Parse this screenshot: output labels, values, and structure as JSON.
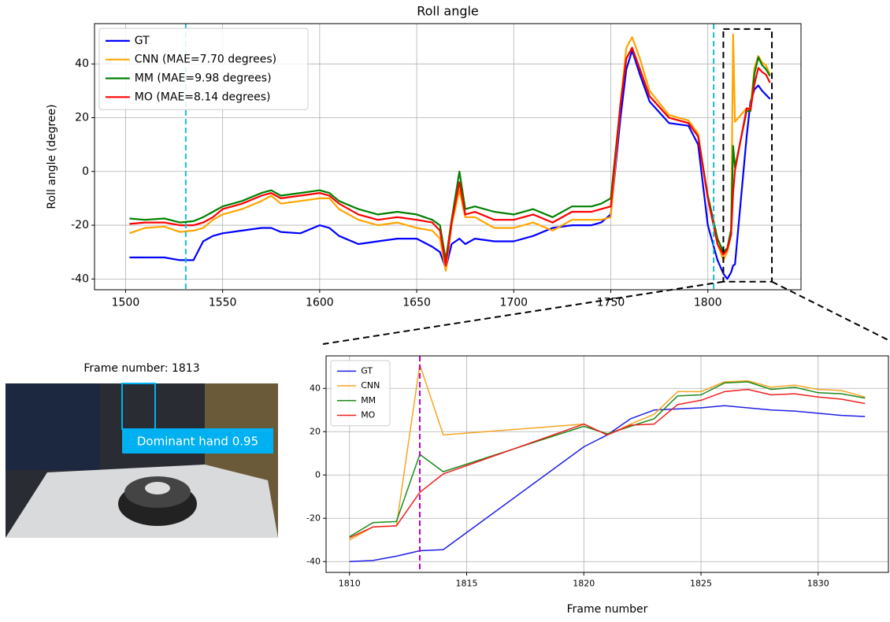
{
  "chart_data": [
    {
      "type": "line",
      "title": "Roll angle",
      "ylabel": "Roll angle (degree)",
      "x": [
        1502,
        1510,
        1520,
        1528,
        1535,
        1540,
        1545,
        1550,
        1560,
        1570,
        1575,
        1580,
        1590,
        1600,
        1605,
        1610,
        1620,
        1630,
        1640,
        1650,
        1658,
        1662,
        1665,
        1668,
        1672,
        1675,
        1680,
        1690,
        1700,
        1710,
        1720,
        1730,
        1740,
        1745,
        1750,
        1755,
        1758,
        1761,
        1765,
        1770,
        1780,
        1790,
        1795,
        1800,
        1805,
        1808,
        1810,
        1812,
        1813,
        1814,
        1820,
        1822,
        1824,
        1826,
        1828,
        1830,
        1832
      ],
      "series": [
        {
          "name": "GT",
          "color": "#0000ff",
          "values": [
            -32,
            -32,
            -32,
            -33,
            -33,
            -26,
            -24,
            -23,
            -22,
            -21,
            -21,
            -22.5,
            -23,
            -20,
            -21,
            -24,
            -27,
            -26,
            -25,
            -25,
            -28,
            -30,
            -36,
            -27,
            -25,
            -27,
            -25,
            -26,
            -26,
            -24,
            -21,
            -20,
            -20,
            -19,
            -16,
            20,
            38,
            45,
            36,
            26,
            18,
            17,
            10,
            -20,
            -33,
            -38,
            -40,
            -37.5,
            -35,
            -34.5,
            13,
            26,
            30.5,
            32,
            30,
            28.5,
            27
          ]
        },
        {
          "name": "CNN (MAE=7.70 degrees)",
          "color": "#ffa500",
          "values": [
            -23,
            -21,
            -20.5,
            -22.5,
            -22,
            -21,
            -18,
            -16,
            -14,
            -11,
            -9,
            -12,
            -11,
            -10,
            -10,
            -14,
            -18,
            -20,
            -19,
            -21,
            -22,
            -25,
            -37,
            -20,
            -7,
            -17,
            -17,
            -21,
            -21,
            -19,
            -22,
            -18,
            -18,
            -18,
            -17,
            25,
            46,
            50,
            42,
            30,
            21,
            19,
            14,
            -10,
            -27,
            -33,
            -30,
            -23.5,
            51,
            18.5,
            23.5,
            23.5,
            38.5,
            43,
            40.5,
            39.5,
            36
          ]
        },
        {
          "name": "MM (MAE=9.98 degrees)",
          "color": "#008000",
          "values": [
            -17.5,
            -18,
            -17.5,
            -19,
            -18.5,
            -17,
            -15,
            -13,
            -11,
            -8,
            -7,
            -9,
            -8,
            -7,
            -8,
            -11,
            -14,
            -16,
            -15,
            -16,
            -18,
            -20,
            -33,
            -18,
            0,
            -14,
            -13,
            -15,
            -16,
            -14,
            -17,
            -13,
            -13,
            -12,
            -10,
            25,
            42,
            46,
            38,
            28,
            20,
            18,
            13,
            -9,
            -25,
            -30,
            -28.5,
            -21.5,
            9.5,
            1.5,
            22.5,
            22.5,
            36.5,
            42.5,
            39.5,
            38,
            35.5
          ]
        },
        {
          "name": "MO (MAE=8.14 degrees)",
          "color": "#ff0000",
          "values": [
            -19.5,
            -19,
            -19,
            -20,
            -20,
            -19,
            -17,
            -14,
            -12,
            -9,
            -8,
            -10,
            -9,
            -8,
            -9,
            -12,
            -16,
            -18,
            -17,
            -18,
            -19,
            -22,
            -35,
            -19,
            -4,
            -16,
            -15,
            -18,
            -18,
            -16,
            -19,
            -15,
            -15,
            -14,
            -13,
            25,
            42,
            46,
            38,
            28,
            20,
            18,
            13,
            -10,
            -27,
            -31,
            -29,
            -23.5,
            -8,
            0.5,
            23.5,
            23,
            32.5,
            38.5,
            37,
            36,
            33
          ]
        }
      ],
      "xlim": [
        1484,
        1848
      ],
      "xticks": [
        1500,
        1550,
        1600,
        1650,
        1700,
        1750,
        1800
      ],
      "ylim": [
        -44,
        55
      ],
      "yticks": [
        -40,
        -20,
        0,
        20,
        40
      ],
      "grid": true,
      "legend": "upper left",
      "vlines": [
        1531,
        1803
      ],
      "vline_color": "#17becf",
      "zoom_box": {
        "xlim": [
          1808,
          1833
        ],
        "ylim": [
          -41,
          53
        ]
      }
    },
    {
      "type": "line",
      "xlabel": "Frame number",
      "x": [
        1810,
        1811,
        1812,
        1813,
        1814,
        1820,
        1821,
        1822,
        1823,
        1824,
        1825,
        1826,
        1827,
        1828,
        1829,
        1830,
        1831,
        1832
      ],
      "series": [
        {
          "name": "GT",
          "color": "#1f1fe6",
          "values": [
            -40,
            -39.5,
            -37.5,
            -35,
            -34.5,
            13,
            18.5,
            26,
            30,
            30.5,
            31,
            32,
            31,
            30,
            29.5,
            28.5,
            27.5,
            27
          ]
        },
        {
          "name": "CNN",
          "color": "#f5a623",
          "values": [
            -30,
            -24,
            -23.5,
            51,
            18.5,
            23.5,
            18.5,
            23.5,
            28,
            38.5,
            38.5,
            43,
            43.5,
            40.5,
            41.5,
            39.5,
            39,
            36
          ]
        },
        {
          "name": "MM",
          "color": "#1e8a1e",
          "values": [
            -28.5,
            -22,
            -21.5,
            9.5,
            1.5,
            22.5,
            19,
            22.5,
            26,
            36.5,
            37,
            42.5,
            43,
            39.5,
            40.5,
            38,
            37.5,
            35.5
          ]
        },
        {
          "name": "MO",
          "color": "#f02020",
          "values": [
            -29,
            -24,
            -23.5,
            -8,
            0.5,
            23.5,
            18.5,
            23,
            23.5,
            32.5,
            34.5,
            38.5,
            39.5,
            37,
            37.5,
            36,
            35,
            33
          ]
        }
      ],
      "xlim": [
        1809,
        1833
      ],
      "xticks": [
        1810,
        1815,
        1820,
        1825,
        1830
      ],
      "ylim": [
        -45,
        55
      ],
      "yticks": [
        -40,
        -20,
        0,
        20,
        40
      ],
      "grid": true,
      "legend": "upper left",
      "vlines": [
        1813
      ],
      "vline_color": "#c000c0"
    }
  ],
  "image_panel": {
    "caption": "Frame number: 1813",
    "detection_label": "Dominant hand 0.95"
  }
}
